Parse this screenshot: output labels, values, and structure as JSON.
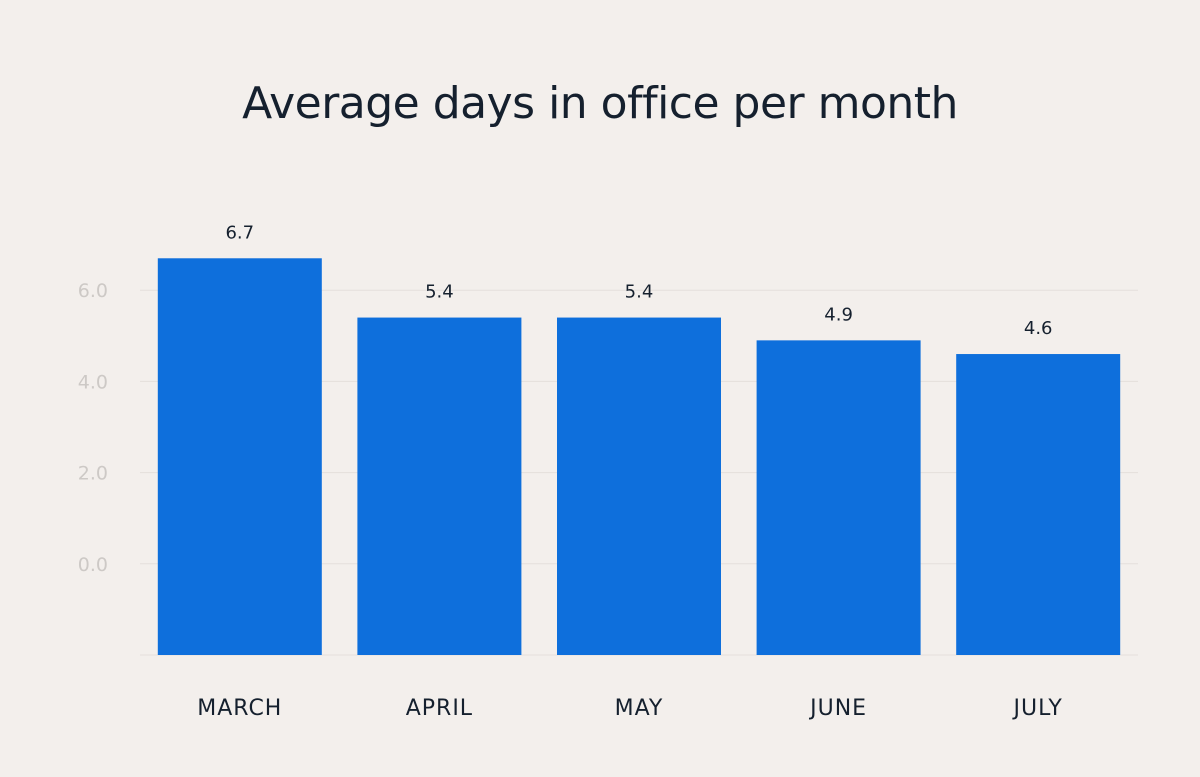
{
  "chart_data": {
    "type": "bar",
    "title": "Average days in office per month",
    "categories": [
      "MARCH",
      "APRIL",
      "MAY",
      "JUNE",
      "JULY"
    ],
    "values": [
      6.7,
      5.4,
      5.4,
      4.9,
      4.6
    ],
    "value_labels": [
      "6.7",
      "5.4",
      "5.4",
      "4.9",
      "4.6"
    ],
    "y_ticks": [
      0.0,
      2.0,
      4.0,
      6.0
    ],
    "y_tick_labels": [
      "0.0",
      "2.0",
      "4.0",
      "6.0"
    ],
    "ylim": [
      -2,
      8
    ],
    "xlabel": "",
    "ylabel": "",
    "grid": true,
    "legend": "none",
    "colors": {
      "bar": "#0e6fdc",
      "background": "#f3efec",
      "text": "#15202e",
      "tick": "#cdc9c6",
      "grid": "#e4dfdb"
    }
  }
}
